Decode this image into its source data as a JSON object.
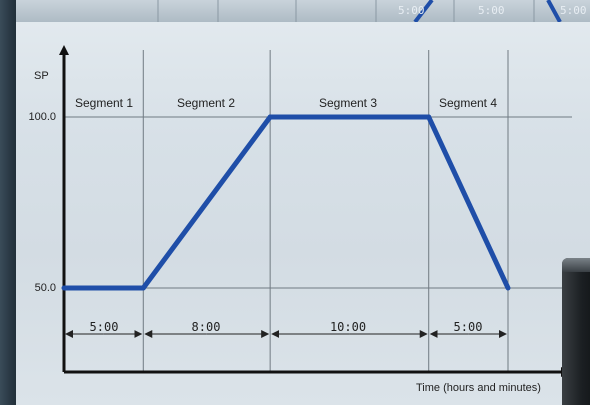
{
  "chart_data": {
    "type": "line",
    "ylabel": "SP",
    "xlabel": "Time (hours and minutes)",
    "y_ticks": [
      "100.0",
      "50.0"
    ],
    "segments": [
      {
        "label": "Segment 1",
        "duration": "5:00",
        "start_sp": 50.0,
        "end_sp": 50.0
      },
      {
        "label": "Segment 2",
        "duration": "8:00",
        "start_sp": 50.0,
        "end_sp": 100.0
      },
      {
        "label": "Segment 3",
        "duration": "10:00",
        "start_sp": 100.0,
        "end_sp": 100.0
      },
      {
        "label": "Segment 4",
        "duration": "5:00",
        "start_sp": 100.0,
        "end_sp": 50.0
      }
    ],
    "profile_color": "#1f4ea8"
  },
  "background_strip": {
    "labels": [
      "5:00",
      "5:00",
      "5:00"
    ]
  }
}
